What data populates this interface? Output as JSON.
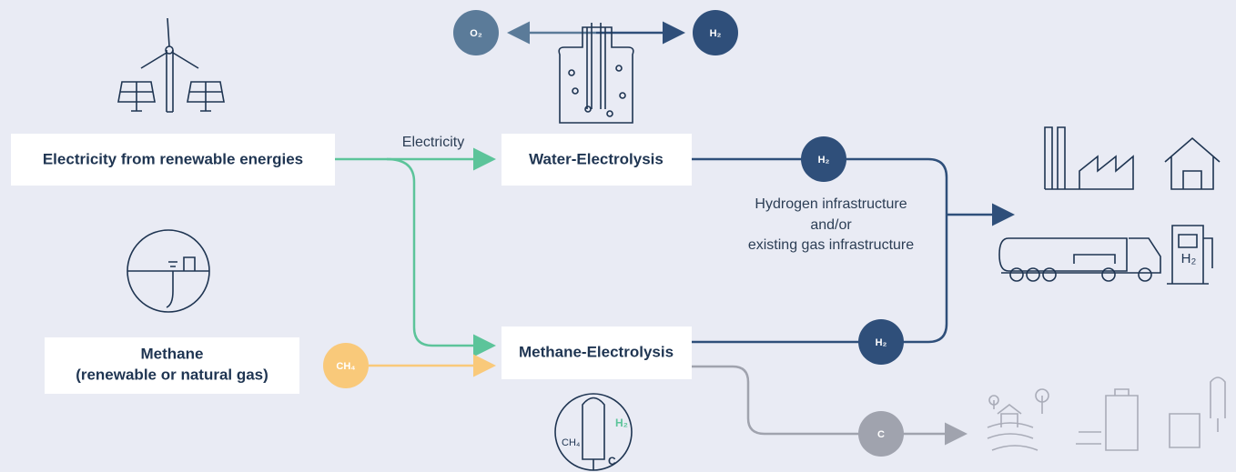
{
  "sources": {
    "electricity": "Electricity from renewable energies",
    "methane_line1": "Methane",
    "methane_line2": "(renewable or natural gas)"
  },
  "flows": {
    "electricity_label": "Electricity",
    "ch4": "CH₄",
    "o2": "O₂",
    "h2_top": "H₂",
    "h2_water": "H₂",
    "h2_methane": "H₂",
    "carbon": "C"
  },
  "processes": {
    "water": "Water-Electrolysis",
    "methane": "Methane-Electrolysis"
  },
  "infrastructure": [
    "Hydrogen infrastructure",
    "and/or",
    "existing gas infrastructure"
  ],
  "icons": {
    "reactor_ch4": "CH₄",
    "reactor_h2": "H₂",
    "reactor_c": "C",
    "pump_h2": "H₂"
  }
}
